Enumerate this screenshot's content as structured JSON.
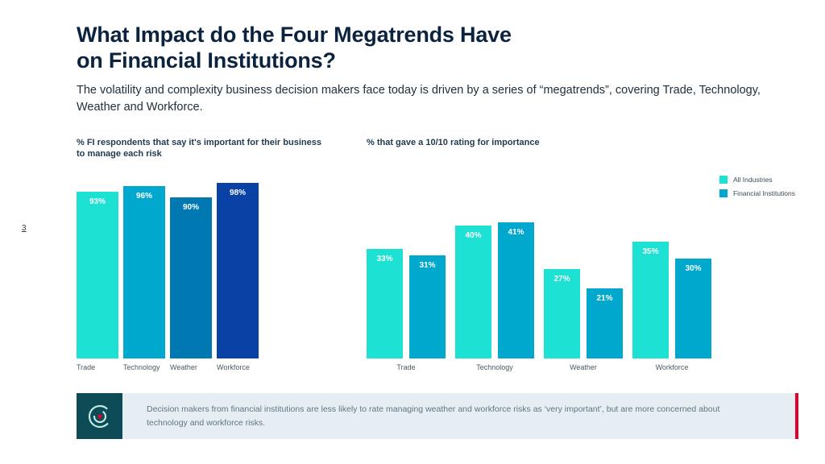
{
  "page": {
    "number": "3"
  },
  "header": {
    "title_line1": "What Impact do the Four Megatrends Have",
    "title_line2": "on Financial Institutions?",
    "subtitle": "The volatility and complexity business decision makers face today is driven by a series of “megatrends”, covering Trade, Technology, Weather and Workforce."
  },
  "colors": {
    "accent_red": "#e4002b",
    "banner_bg": "#e7eef3",
    "icon_bg": "#0d4b57",
    "cyan": "#1de1d2",
    "teal": "#00a8cd"
  },
  "chart_data": [
    {
      "type": "bar",
      "title": "% FI respondents that say it's important for their business to manage each risk",
      "categories": [
        "Trade",
        "Technology",
        "Weather",
        "Workforce"
      ],
      "values": [
        93,
        96,
        90,
        98
      ],
      "value_labels": [
        "93%",
        "96%",
        "90%",
        "98%"
      ],
      "bar_colors": [
        "#1de1d2",
        "#00a8cd",
        "#0079b2",
        "#0a41a5"
      ],
      "ylim": [
        0,
        100
      ],
      "grid": false,
      "legend_position": "none"
    },
    {
      "type": "bar",
      "title": "% that gave a 10/10 rating for importance",
      "categories": [
        "Trade",
        "Technology",
        "Weather",
        "Workforce"
      ],
      "series": [
        {
          "name": "All Industries",
          "color": "#1de1d2",
          "values": [
            33,
            40,
            27,
            35
          ]
        },
        {
          "name": "Financial Institutions",
          "color": "#00a8cd",
          "values": [
            31,
            41,
            21,
            30
          ]
        }
      ],
      "ylim": [
        0,
        50
      ],
      "grid": false,
      "legend_position": "top-right"
    }
  ],
  "insight": {
    "text": "Decision makers from financial institutions are less likely to rate managing weather and workforce risks as ‘very important’, but are more concerned about technology and workforce risks."
  }
}
